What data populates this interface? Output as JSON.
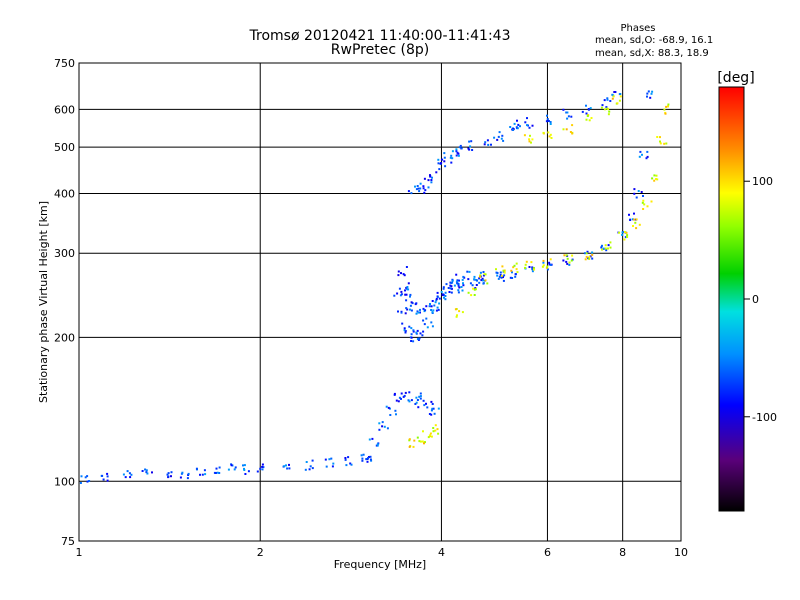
{
  "chart_data": {
    "type": "scatter",
    "title": "Tromsø 20120421 11:40:00-11:41:43",
    "subtitle": "RwPretec (8p)",
    "xlabel": "Frequency [MHz]",
    "ylabel": "Stationary phase Virtual Height [km]",
    "x_scale": "log",
    "y_scale": "log",
    "xlim": [
      1,
      10
    ],
    "ylim": [
      75,
      750
    ],
    "grid": true,
    "x_ticks": [
      {
        "value": 1,
        "label": "1"
      },
      {
        "value": 2,
        "label": "2"
      },
      {
        "value": 4,
        "label": "4"
      },
      {
        "value": 6,
        "label": "6"
      },
      {
        "value": 8,
        "label": "8"
      },
      {
        "value": 10,
        "label": "10"
      }
    ],
    "y_ticks": [
      {
        "value": 75,
        "label": "75"
      },
      {
        "value": 100,
        "label": "100"
      },
      {
        "value": 200,
        "label": "200"
      },
      {
        "value": 300,
        "label": "300"
      },
      {
        "value": 400,
        "label": "400"
      },
      {
        "value": 500,
        "label": "500"
      },
      {
        "value": 600,
        "label": "600"
      },
      {
        "value": 750,
        "label": "750"
      }
    ],
    "phase_stats": {
      "heading": "Phases",
      "o_line": "mean, sd,O: -68.9, 16.1",
      "x_line": "mean, sd,X:  88.3, 18.9"
    },
    "colorbar": {
      "label": "[deg]",
      "range": [
        -180,
        180
      ],
      "ticks": [
        {
          "value": 100,
          "label": "100"
        },
        {
          "value": 0,
          "label": "0"
        },
        {
          "value": -100,
          "label": "-100"
        }
      ],
      "colormap": "rainbow"
    },
    "series": [
      {
        "mode": "O",
        "phase_deg": -68.9,
        "segments": [
          {
            "x": [
              1.02,
              1.1,
              1.2,
              1.3,
              1.4,
              1.5,
              1.6,
              1.7,
              1.8,
              1.9,
              2.0,
              2.2,
              2.4,
              2.6,
              2.8,
              3.0
            ],
            "y": [
              101,
              102,
              103,
              104,
              103,
              104,
              105,
              105,
              106,
              106,
              106,
              107,
              108,
              109,
              110,
              112
            ]
          },
          {
            "x": [
              3.0,
              3.1,
              3.2,
              3.3,
              3.4,
              3.5,
              3.6,
              3.7,
              3.8,
              3.9
            ],
            "y": [
              112,
              120,
              130,
              140,
              150,
              150,
              145,
              150,
              145,
              140
            ]
          },
          {
            "x": [
              3.4,
              3.45,
              3.5,
              3.55,
              3.6,
              3.7,
              3.8,
              3.9,
              4.0,
              4.1,
              4.2,
              4.3,
              4.5,
              4.7,
              5.0
            ],
            "y": [
              250,
              225,
              210,
              203,
              200,
              203,
              215,
              230,
              245,
              255,
              262,
              265,
              268,
              268,
              270
            ]
          },
          {
            "x": [
              3.45,
              3.5,
              3.55,
              3.6,
              3.7,
              3.8,
              3.9,
              4.0,
              4.1,
              4.2,
              4.3,
              4.5,
              4.7,
              5.0,
              5.3,
              5.6,
              6.0,
              6.5,
              7.0,
              7.5,
              8.0,
              8.3,
              8.5,
              8.7,
              8.9
            ],
            "y": [
              275,
              255,
              240,
              232,
              226,
              229,
              236,
              244,
              250,
              254,
              256,
              259,
              262,
              267,
              272,
              277,
              283,
              290,
              298,
              310,
              330,
              360,
              400,
              480,
              640
            ]
          },
          {
            "x": [
              3.6,
              3.7,
              3.8,
              3.9,
              4.0,
              4.1,
              4.2,
              4.3,
              4.5,
              4.8,
              5.0,
              5.3
            ],
            "y": [
              405,
              410,
              420,
              440,
              460,
              475,
              485,
              495,
              505,
              515,
              525,
              555
            ]
          },
          {
            "x": [
              5.3,
              5.6,
              6.0,
              6.5,
              7.0,
              7.5,
              7.8
            ],
            "y": [
              555,
              562,
              570,
              585,
              600,
              620,
              640
            ]
          }
        ]
      },
      {
        "mode": "X",
        "phase_deg": 88.3,
        "segments": [
          {
            "x": [
              4.3,
              4.5,
              4.7,
              5.0,
              5.3,
              5.6,
              6.0,
              6.5,
              7.0,
              7.5,
              8.0,
              8.4,
              8.8,
              9.1,
              9.3,
              9.4
            ],
            "y": [
              225,
              250,
              265,
              275,
              280,
              283,
              286,
              290,
              298,
              310,
              325,
              345,
              380,
              430,
              520,
              600
            ]
          },
          {
            "x": [
              5.6,
              6.0,
              6.5,
              7.0,
              7.5,
              7.8
            ],
            "y": [
              520,
              530,
              545,
              570,
              600,
              630
            ]
          },
          {
            "x": [
              3.6,
              3.7,
              3.8,
              3.9
            ],
            "y": [
              120,
              122,
              125,
              128
            ]
          }
        ]
      }
    ]
  }
}
